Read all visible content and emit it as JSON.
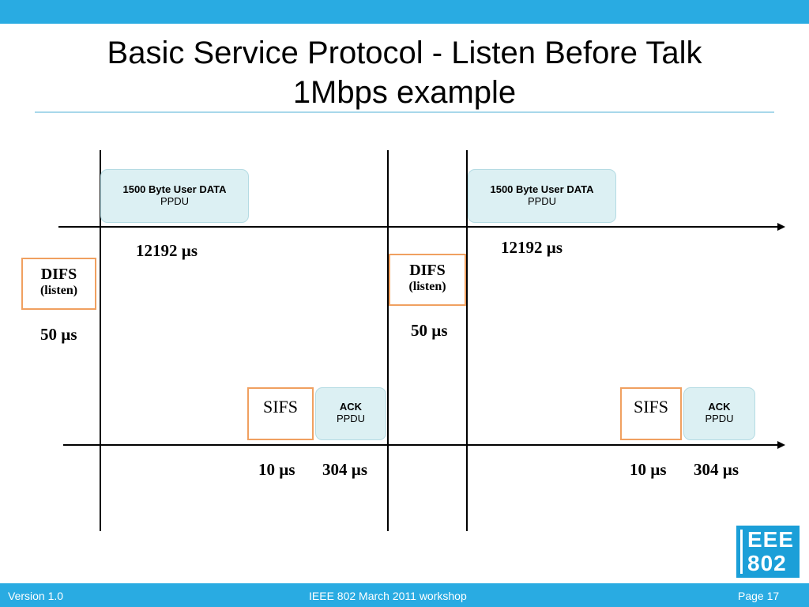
{
  "slide": {
    "title_line1": "Basic Service Protocol - Listen Before Talk",
    "title_line2": "1Mbps example"
  },
  "diagram": {
    "data_ppdu": {
      "label": "1500 Byte User DATA",
      "sublabel": "PPDU"
    },
    "ack_ppdu": {
      "label": "ACK",
      "sublabel": "PPDU"
    },
    "difs": {
      "label": "DIFS",
      "sublabel": "(listen)"
    },
    "sifs": {
      "label": "SIFS"
    },
    "times": {
      "data": "12192 µs",
      "difs": "50 µs",
      "sifs": "10 µs",
      "ack": "304 µs"
    }
  },
  "logo": {
    "line1": "EEE",
    "line2": "802"
  },
  "footer": {
    "version": "Version 1.0",
    "event": "IEEE 802 March 2011 workshop",
    "page": "Page 17"
  },
  "colors": {
    "bar": "#29abe2",
    "ppdu_fill": "#dcf0f3",
    "ifs_border": "#f0a060",
    "logo": "#1b9fd8"
  }
}
